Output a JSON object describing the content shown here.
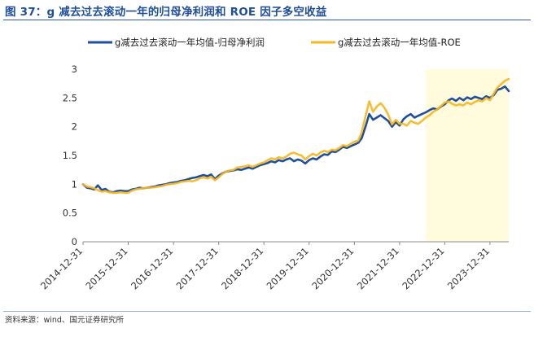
{
  "title": "图 37：g 减去过去滚动一年的归母净利润和 ROE 因子多空收益",
  "source": "资料来源：wind、国元证券研究所",
  "colors": {
    "title": "#1f4e9a",
    "series1": "#1f4e9a",
    "series2": "#f5b722",
    "highlight": "#fffbdc"
  },
  "chart_data": {
    "type": "line",
    "x_start": "2014-12-31",
    "x_end": "2024-05-31",
    "x_ticks": [
      "2014-12-31",
      "2015-12-31",
      "2016-12-31",
      "2017-12-31",
      "2018-12-31",
      "2019-12-31",
      "2020-12-31",
      "2021-12-31",
      "2022-12-31",
      "2023-12-31"
    ],
    "ylim": [
      0,
      3
    ],
    "y_ticks": [
      "0",
      "0.5",
      "1",
      "1.5",
      "2",
      "2.5",
      "3"
    ],
    "highlight_range": [
      "2022-07-31",
      "2024-05-31"
    ],
    "legend_position": "top",
    "series": [
      {
        "name": "g减去过去滚动一年均值-归母净利润",
        "color": "#1f4e9a",
        "points": [
          [
            "2014-12-31",
            1.0
          ],
          [
            "2015-01-31",
            0.94
          ],
          [
            "2015-02-28",
            0.93
          ],
          [
            "2015-03-31",
            0.91
          ],
          [
            "2015-04-30",
            0.98
          ],
          [
            "2015-05-31",
            0.9
          ],
          [
            "2015-06-30",
            0.92
          ],
          [
            "2015-07-31",
            0.87
          ],
          [
            "2015-08-31",
            0.86
          ],
          [
            "2015-09-30",
            0.88
          ],
          [
            "2015-10-31",
            0.89
          ],
          [
            "2015-11-30",
            0.88
          ],
          [
            "2015-12-31",
            0.88
          ],
          [
            "2016-01-31",
            0.91
          ],
          [
            "2016-02-29",
            0.92
          ],
          [
            "2016-03-31",
            0.94
          ],
          [
            "2016-04-30",
            0.93
          ],
          [
            "2016-05-31",
            0.94
          ],
          [
            "2016-06-30",
            0.95
          ],
          [
            "2016-07-31",
            0.96
          ],
          [
            "2016-08-31",
            0.98
          ],
          [
            "2016-09-30",
            0.99
          ],
          [
            "2016-10-31",
            1.0
          ],
          [
            "2016-11-30",
            1.02
          ],
          [
            "2016-12-31",
            1.03
          ],
          [
            "2017-01-31",
            1.04
          ],
          [
            "2017-02-28",
            1.06
          ],
          [
            "2017-03-31",
            1.07
          ],
          [
            "2017-04-30",
            1.09
          ],
          [
            "2017-05-31",
            1.11
          ],
          [
            "2017-06-30",
            1.12
          ],
          [
            "2017-07-31",
            1.14
          ],
          [
            "2017-08-31",
            1.16
          ],
          [
            "2017-09-30",
            1.14
          ],
          [
            "2017-10-31",
            1.17
          ],
          [
            "2017-11-30",
            1.09
          ],
          [
            "2017-12-31",
            1.15
          ],
          [
            "2018-01-31",
            1.19
          ],
          [
            "2018-02-28",
            1.22
          ],
          [
            "2018-03-31",
            1.23
          ],
          [
            "2018-04-30",
            1.24
          ],
          [
            "2018-05-31",
            1.26
          ],
          [
            "2018-06-30",
            1.25
          ],
          [
            "2018-07-31",
            1.27
          ],
          [
            "2018-08-31",
            1.29
          ],
          [
            "2018-09-30",
            1.27
          ],
          [
            "2018-10-31",
            1.3
          ],
          [
            "2018-11-30",
            1.33
          ],
          [
            "2018-12-31",
            1.35
          ],
          [
            "2019-01-31",
            1.37
          ],
          [
            "2019-02-28",
            1.4
          ],
          [
            "2019-03-31",
            1.38
          ],
          [
            "2019-04-30",
            1.42
          ],
          [
            "2019-05-31",
            1.4
          ],
          [
            "2019-06-30",
            1.43
          ],
          [
            "2019-07-31",
            1.45
          ],
          [
            "2019-08-31",
            1.4
          ],
          [
            "2019-09-30",
            1.43
          ],
          [
            "2019-10-31",
            1.41
          ],
          [
            "2019-11-30",
            1.36
          ],
          [
            "2019-12-31",
            1.42
          ],
          [
            "2020-01-31",
            1.45
          ],
          [
            "2020-02-29",
            1.43
          ],
          [
            "2020-03-31",
            1.48
          ],
          [
            "2020-04-30",
            1.52
          ],
          [
            "2020-05-31",
            1.51
          ],
          [
            "2020-06-30",
            1.57
          ],
          [
            "2020-07-31",
            1.56
          ],
          [
            "2020-08-31",
            1.6
          ],
          [
            "2020-09-30",
            1.65
          ],
          [
            "2020-10-31",
            1.63
          ],
          [
            "2020-11-30",
            1.66
          ],
          [
            "2020-12-31",
            1.69
          ],
          [
            "2021-01-31",
            1.72
          ],
          [
            "2021-02-28",
            1.8
          ],
          [
            "2021-03-31",
            2.0
          ],
          [
            "2021-04-30",
            2.22
          ],
          [
            "2021-05-31",
            2.12
          ],
          [
            "2021-06-30",
            2.16
          ],
          [
            "2021-07-31",
            2.2
          ],
          [
            "2021-08-31",
            2.15
          ],
          [
            "2021-09-30",
            2.1
          ],
          [
            "2021-10-31",
            2.0
          ],
          [
            "2021-11-30",
            2.08
          ],
          [
            "2021-12-31",
            2.02
          ],
          [
            "2022-01-31",
            2.13
          ],
          [
            "2022-02-28",
            2.18
          ],
          [
            "2022-03-31",
            2.22
          ],
          [
            "2022-04-30",
            2.16
          ],
          [
            "2022-05-31",
            2.19
          ],
          [
            "2022-06-30",
            2.22
          ],
          [
            "2022-07-31",
            2.25
          ],
          [
            "2022-08-31",
            2.29
          ],
          [
            "2022-09-30",
            2.32
          ],
          [
            "2022-10-31",
            2.3
          ],
          [
            "2022-11-30",
            2.35
          ],
          [
            "2022-12-31",
            2.39
          ],
          [
            "2023-01-31",
            2.46
          ],
          [
            "2023-02-28",
            2.49
          ],
          [
            "2023-03-31",
            2.45
          ],
          [
            "2023-04-30",
            2.5
          ],
          [
            "2023-05-31",
            2.46
          ],
          [
            "2023-06-30",
            2.51
          ],
          [
            "2023-07-31",
            2.48
          ],
          [
            "2023-08-31",
            2.52
          ],
          [
            "2023-09-30",
            2.5
          ],
          [
            "2023-10-31",
            2.48
          ],
          [
            "2023-11-30",
            2.53
          ],
          [
            "2023-12-31",
            2.5
          ],
          [
            "2024-01-31",
            2.55
          ],
          [
            "2024-02-29",
            2.64
          ],
          [
            "2024-03-31",
            2.66
          ],
          [
            "2024-04-30",
            2.7
          ],
          [
            "2024-05-31",
            2.62
          ]
        ]
      },
      {
        "name": "g减去过去滚动一年均值-ROE",
        "color": "#f5b722",
        "points": [
          [
            "2014-12-31",
            1.0
          ],
          [
            "2015-01-31",
            0.96
          ],
          [
            "2015-02-28",
            0.95
          ],
          [
            "2015-03-31",
            0.93
          ],
          [
            "2015-04-30",
            0.9
          ],
          [
            "2015-05-31",
            0.87
          ],
          [
            "2015-06-30",
            0.88
          ],
          [
            "2015-07-31",
            0.86
          ],
          [
            "2015-08-31",
            0.85
          ],
          [
            "2015-09-30",
            0.85
          ],
          [
            "2015-10-31",
            0.86
          ],
          [
            "2015-11-30",
            0.85
          ],
          [
            "2015-12-31",
            0.85
          ],
          [
            "2016-01-31",
            0.89
          ],
          [
            "2016-02-29",
            0.91
          ],
          [
            "2016-03-31",
            0.92
          ],
          [
            "2016-04-30",
            0.93
          ],
          [
            "2016-05-31",
            0.94
          ],
          [
            "2016-06-30",
            0.94
          ],
          [
            "2016-07-31",
            0.95
          ],
          [
            "2016-08-31",
            0.96
          ],
          [
            "2016-09-30",
            0.97
          ],
          [
            "2016-10-31",
            0.99
          ],
          [
            "2016-11-30",
            1.0
          ],
          [
            "2016-12-31",
            1.01
          ],
          [
            "2017-01-31",
            1.02
          ],
          [
            "2017-02-28",
            1.04
          ],
          [
            "2017-03-31",
            1.05
          ],
          [
            "2017-04-30",
            1.06
          ],
          [
            "2017-05-31",
            1.05
          ],
          [
            "2017-06-30",
            1.07
          ],
          [
            "2017-07-31",
            1.1
          ],
          [
            "2017-08-31",
            1.12
          ],
          [
            "2017-09-30",
            1.1
          ],
          [
            "2017-10-31",
            1.13
          ],
          [
            "2017-11-30",
            1.07
          ],
          [
            "2017-12-31",
            1.12
          ],
          [
            "2018-01-31",
            1.18
          ],
          [
            "2018-02-28",
            1.22
          ],
          [
            "2018-03-31",
            1.24
          ],
          [
            "2018-04-30",
            1.25
          ],
          [
            "2018-05-31",
            1.29
          ],
          [
            "2018-06-30",
            1.3
          ],
          [
            "2018-07-31",
            1.31
          ],
          [
            "2018-08-31",
            1.33
          ],
          [
            "2018-09-30",
            1.3
          ],
          [
            "2018-10-31",
            1.33
          ],
          [
            "2018-11-30",
            1.36
          ],
          [
            "2018-12-31",
            1.38
          ],
          [
            "2019-01-31",
            1.42
          ],
          [
            "2019-02-28",
            1.45
          ],
          [
            "2019-03-31",
            1.43
          ],
          [
            "2019-04-30",
            1.47
          ],
          [
            "2019-05-31",
            1.45
          ],
          [
            "2019-06-30",
            1.48
          ],
          [
            "2019-07-31",
            1.53
          ],
          [
            "2019-08-31",
            1.55
          ],
          [
            "2019-09-30",
            1.52
          ],
          [
            "2019-10-31",
            1.5
          ],
          [
            "2019-11-30",
            1.43
          ],
          [
            "2019-12-31",
            1.49
          ],
          [
            "2020-01-31",
            1.53
          ],
          [
            "2020-02-29",
            1.5
          ],
          [
            "2020-03-31",
            1.55
          ],
          [
            "2020-04-30",
            1.58
          ],
          [
            "2020-05-31",
            1.56
          ],
          [
            "2020-06-30",
            1.6
          ],
          [
            "2020-07-31",
            1.59
          ],
          [
            "2020-08-31",
            1.63
          ],
          [
            "2020-09-30",
            1.68
          ],
          [
            "2020-10-31",
            1.66
          ],
          [
            "2020-11-30",
            1.7
          ],
          [
            "2020-12-31",
            1.74
          ],
          [
            "2021-01-31",
            1.76
          ],
          [
            "2021-02-28",
            1.9
          ],
          [
            "2021-03-31",
            2.18
          ],
          [
            "2021-04-30",
            2.44
          ],
          [
            "2021-05-31",
            2.26
          ],
          [
            "2021-06-30",
            2.35
          ],
          [
            "2021-07-31",
            2.41
          ],
          [
            "2021-08-31",
            2.33
          ],
          [
            "2021-09-30",
            2.21
          ],
          [
            "2021-10-31",
            2.04
          ],
          [
            "2021-11-30",
            2.12
          ],
          [
            "2021-12-31",
            2.05
          ],
          [
            "2022-01-31",
            2.05
          ],
          [
            "2022-02-28",
            2.02
          ],
          [
            "2022-03-31",
            2.1
          ],
          [
            "2022-04-30",
            2.07
          ],
          [
            "2022-05-31",
            2.05
          ],
          [
            "2022-06-30",
            2.1
          ],
          [
            "2022-07-31",
            2.16
          ],
          [
            "2022-08-31",
            2.2
          ],
          [
            "2022-09-30",
            2.26
          ],
          [
            "2022-10-31",
            2.3
          ],
          [
            "2022-11-30",
            2.36
          ],
          [
            "2022-12-31",
            2.42
          ],
          [
            "2023-01-31",
            2.44
          ],
          [
            "2023-02-28",
            2.4
          ],
          [
            "2023-03-31",
            2.37
          ],
          [
            "2023-04-30",
            2.39
          ],
          [
            "2023-05-31",
            2.37
          ],
          [
            "2023-06-30",
            2.42
          ],
          [
            "2023-07-31",
            2.39
          ],
          [
            "2023-08-31",
            2.43
          ],
          [
            "2023-09-30",
            2.46
          ],
          [
            "2023-10-31",
            2.44
          ],
          [
            "2023-11-30",
            2.5
          ],
          [
            "2023-12-31",
            2.46
          ],
          [
            "2024-01-31",
            2.58
          ],
          [
            "2024-02-29",
            2.68
          ],
          [
            "2024-03-31",
            2.74
          ],
          [
            "2024-04-30",
            2.8
          ],
          [
            "2024-05-31",
            2.83
          ]
        ]
      }
    ]
  }
}
